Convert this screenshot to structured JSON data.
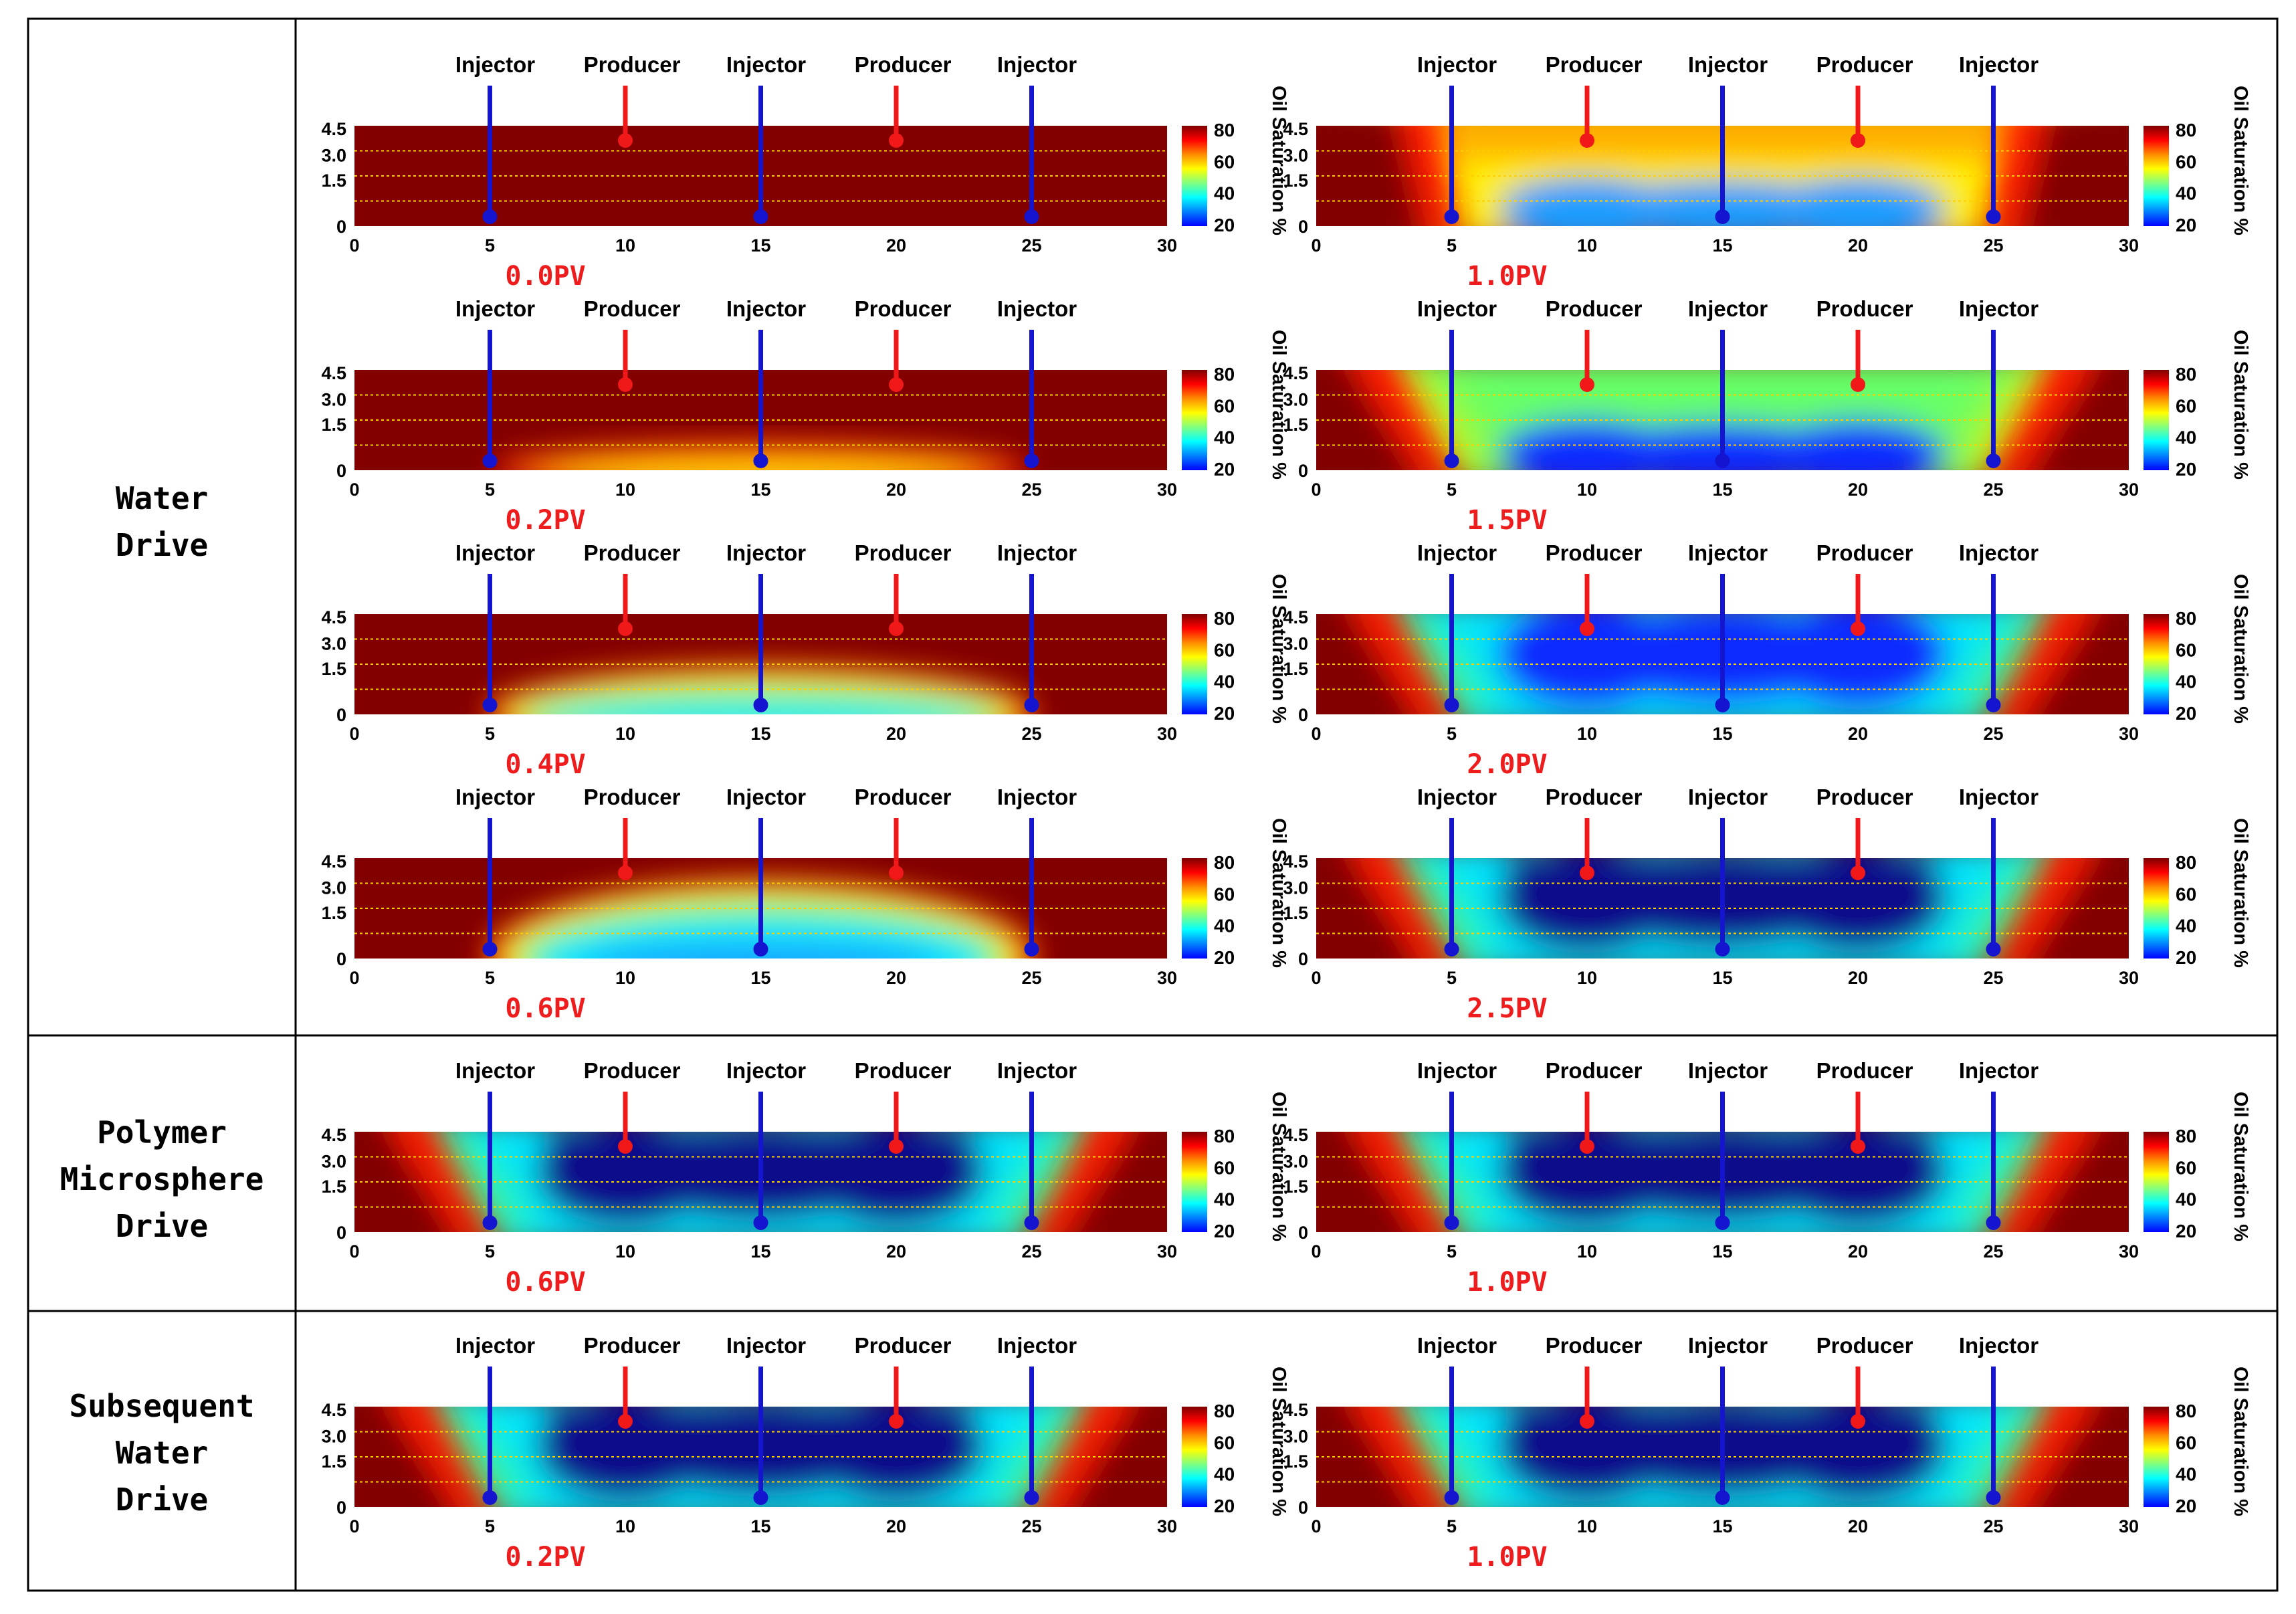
{
  "sections": [
    {
      "label_lines": [
        "Water",
        "Drive"
      ]
    },
    {
      "label_lines": [
        "Polymer",
        "Microsphere",
        "Drive"
      ]
    },
    {
      "label_lines": [
        "Subsequent",
        "Water",
        "Drive"
      ]
    }
  ],
  "well_labels": [
    "Injector",
    "Producer",
    "Injector",
    "Producer",
    "Injector"
  ],
  "well_positions": [
    5,
    10,
    15,
    20,
    25
  ],
  "well_types": [
    "injector",
    "producer",
    "injector",
    "producer",
    "injector"
  ],
  "x_ticks": [
    "0",
    "5",
    "10",
    "15",
    "20",
    "25",
    "30"
  ],
  "y_ticks": [
    "4.5",
    "3.0",
    "1.5",
    "0"
  ],
  "colorbar": {
    "title": "Oil Saturation %",
    "ticks": [
      "80",
      "60",
      "40",
      "20"
    ],
    "colors": [
      "#800000",
      "#ff0000",
      "#ff8c00",
      "#ffff00",
      "#80ff80",
      "#00ffff",
      "#0080ff",
      "#0000ff"
    ]
  },
  "colors": {
    "injector": "#1515d0",
    "producer": "#f01818",
    "pv_label": "#ee1c1c",
    "layer_line": "#ffd000",
    "oil": "#820000"
  },
  "panels": [
    {
      "pv": "0.0PV",
      "state": 0.0
    },
    {
      "pv": "1.0PV",
      "state": 0.42
    },
    {
      "pv": "0.2PV",
      "state": 0.08
    },
    {
      "pv": "1.5PV",
      "state": 0.55
    },
    {
      "pv": "0.4PV",
      "state": 0.17
    },
    {
      "pv": "2.0PV",
      "state": 0.72
    },
    {
      "pv": "0.6PV",
      "state": 0.3
    },
    {
      "pv": "2.5PV",
      "state": 0.8
    },
    {
      "pv": "0.6PV",
      "state": 0.84
    },
    {
      "pv": "1.0PV",
      "state": 0.88
    },
    {
      "pv": "0.2PV",
      "state": 0.93
    },
    {
      "pv": "1.0PV",
      "state": 0.97
    }
  ]
}
